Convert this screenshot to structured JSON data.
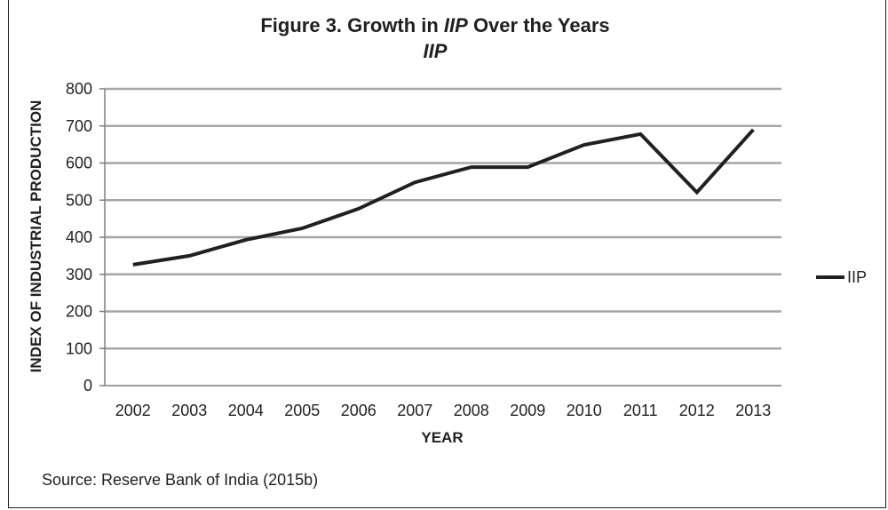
{
  "title": {
    "prefix": "Figure 3. Growth in ",
    "emphasis": "IIP",
    "suffix": " Over the Years"
  },
  "subtitle": "IIP",
  "source": "Source: Reserve Bank of India (2015b)",
  "colors": {
    "line": "#231f20",
    "grid": "#a6a6a6",
    "axis": "#7f7f7f"
  },
  "chart_data": {
    "type": "line",
    "categories": [
      "2002",
      "2003",
      "2004",
      "2005",
      "2006",
      "2007",
      "2008",
      "2009",
      "2010",
      "2011",
      "2012",
      "2013"
    ],
    "series": [
      {
        "name": "IIP",
        "values": [
          326,
          350,
          393,
          424,
          477,
          548,
          589,
          589,
          649,
          678,
          521,
          690
        ]
      }
    ],
    "xlabel": "YEAR",
    "ylabel": "INDEX OF INDUSTRIAL PRODUCTION",
    "ylim": [
      0,
      800
    ],
    "yticks": [
      0,
      100,
      200,
      300,
      400,
      500,
      600,
      700,
      800
    ],
    "grid": true,
    "legend": "right"
  }
}
